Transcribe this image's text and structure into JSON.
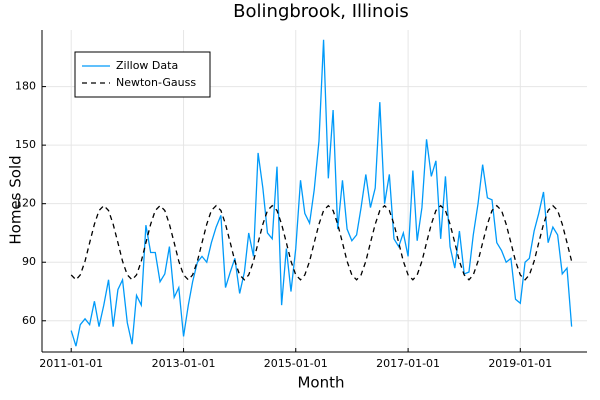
{
  "chart_data": {
    "type": "line",
    "title": "Bolingbrook, Illinois",
    "x_label": "Month",
    "y_label": "Homes Sold",
    "x": [
      "2011-01-01",
      "2011-02-01",
      "2011-03-01",
      "2011-04-01",
      "2011-05-01",
      "2011-06-01",
      "2011-07-01",
      "2011-08-01",
      "2011-09-01",
      "2011-10-01",
      "2011-11-01",
      "2011-12-01",
      "2012-01-01",
      "2012-02-01",
      "2012-03-01",
      "2012-04-01",
      "2012-05-01",
      "2012-06-01",
      "2012-07-01",
      "2012-08-01",
      "2012-09-01",
      "2012-10-01",
      "2012-11-01",
      "2012-12-01",
      "2013-01-01",
      "2013-02-01",
      "2013-03-01",
      "2013-04-01",
      "2013-05-01",
      "2013-06-01",
      "2013-07-01",
      "2013-08-01",
      "2013-09-01",
      "2013-10-01",
      "2013-11-01",
      "2013-12-01",
      "2014-01-01",
      "2014-02-01",
      "2014-03-01",
      "2014-04-01",
      "2014-05-01",
      "2014-06-01",
      "2014-07-01",
      "2014-08-01",
      "2014-09-01",
      "2014-10-01",
      "2014-11-01",
      "2014-12-01",
      "2015-01-01",
      "2015-02-01",
      "2015-03-01",
      "2015-04-01",
      "2015-05-01",
      "2015-06-01",
      "2015-07-01",
      "2015-08-01",
      "2015-09-01",
      "2015-10-01",
      "2015-11-01",
      "2015-12-01",
      "2016-01-01",
      "2016-02-01",
      "2016-03-01",
      "2016-04-01",
      "2016-05-01",
      "2016-06-01",
      "2016-07-01",
      "2016-08-01",
      "2016-09-01",
      "2016-10-01",
      "2016-11-01",
      "2016-12-01",
      "2017-01-01",
      "2017-02-01",
      "2017-03-01",
      "2017-04-01",
      "2017-05-01",
      "2017-06-01",
      "2017-07-01",
      "2017-08-01",
      "2017-09-01",
      "2017-10-01",
      "2017-11-01",
      "2017-12-01",
      "2018-01-01",
      "2018-02-01",
      "2018-03-01",
      "2018-04-01",
      "2018-05-01",
      "2018-06-01",
      "2018-07-01",
      "2018-08-01",
      "2018-09-01",
      "2018-10-01",
      "2018-11-01",
      "2018-12-01",
      "2019-01-01",
      "2019-02-01",
      "2019-03-01",
      "2019-04-01",
      "2019-05-01",
      "2019-06-01",
      "2019-07-01",
      "2019-08-01",
      "2019-09-01",
      "2019-10-01",
      "2019-11-01",
      "2019-12-01"
    ],
    "series": [
      {
        "name": "Zillow Data",
        "color": "#009af9",
        "dash": false,
        "values": [
          55,
          47,
          58,
          61,
          58,
          70,
          57,
          68,
          81,
          57,
          76,
          81,
          59,
          48,
          73,
          68,
          109,
          95,
          95,
          80,
          84,
          98,
          72,
          77,
          52,
          68,
          80,
          90,
          93,
          90,
          100,
          108,
          114,
          77,
          85,
          92,
          74,
          85,
          105,
          93,
          146,
          128,
          105,
          102,
          139,
          68,
          97,
          75,
          97,
          132,
          115,
          110,
          127,
          152,
          204,
          133,
          168,
          107,
          132,
          107,
          101,
          104,
          118,
          135,
          118,
          128,
          172,
          120,
          135,
          102,
          98,
          105,
          93,
          137,
          101,
          118,
          153,
          134,
          142,
          102,
          134,
          98,
          87,
          106,
          84,
          85,
          104,
          120,
          140,
          123,
          122,
          100,
          96,
          90,
          92,
          71,
          69,
          90,
          92,
          106,
          115,
          126,
          100,
          108,
          104,
          84,
          87,
          57
        ]
      },
      {
        "name": "Newton-Gauss",
        "color": "#000000",
        "dash": true,
        "values": [
          83.5,
          81,
          83.5,
          90.5,
          100,
          109.5,
          116.5,
          119,
          116.5,
          109.5,
          100,
          90.5,
          83.5,
          81,
          83.5,
          90.5,
          100,
          109.5,
          116.5,
          119,
          116.5,
          109.5,
          100,
          90.5,
          83.5,
          81,
          83.5,
          90.5,
          100,
          109.5,
          116.5,
          119,
          116.5,
          109.5,
          100,
          90.5,
          83.5,
          81,
          83.5,
          90.5,
          100,
          109.5,
          116.5,
          119,
          116.5,
          109.5,
          100,
          90.5,
          83.5,
          81,
          83.5,
          90.5,
          100,
          109.5,
          116.5,
          119,
          116.5,
          109.5,
          100,
          90.5,
          83.5,
          81,
          83.5,
          90.5,
          100,
          109.5,
          116.5,
          119,
          116.5,
          109.5,
          100,
          90.5,
          83.5,
          81,
          83.5,
          90.5,
          100,
          109.5,
          116.5,
          119,
          116.5,
          109.5,
          100,
          90.5,
          83.5,
          81,
          83.5,
          90.5,
          100,
          109.5,
          116.5,
          119,
          116.5,
          109.5,
          100,
          90.5,
          83.5,
          81,
          83.5,
          90.5,
          100,
          109.5,
          116.5,
          119,
          116.5,
          109.5,
          100,
          90.5
        ]
      }
    ],
    "xlim": [
      "2010-06-25",
      "2020-03-10"
    ],
    "xticks": [
      "2011-01-01",
      "2013-01-01",
      "2015-01-01",
      "2017-01-01",
      "2019-01-01"
    ],
    "ylim": [
      44,
      209
    ],
    "yticks": [
      60,
      90,
      120,
      150,
      180
    ],
    "grid": true,
    "legend": "top-left"
  }
}
